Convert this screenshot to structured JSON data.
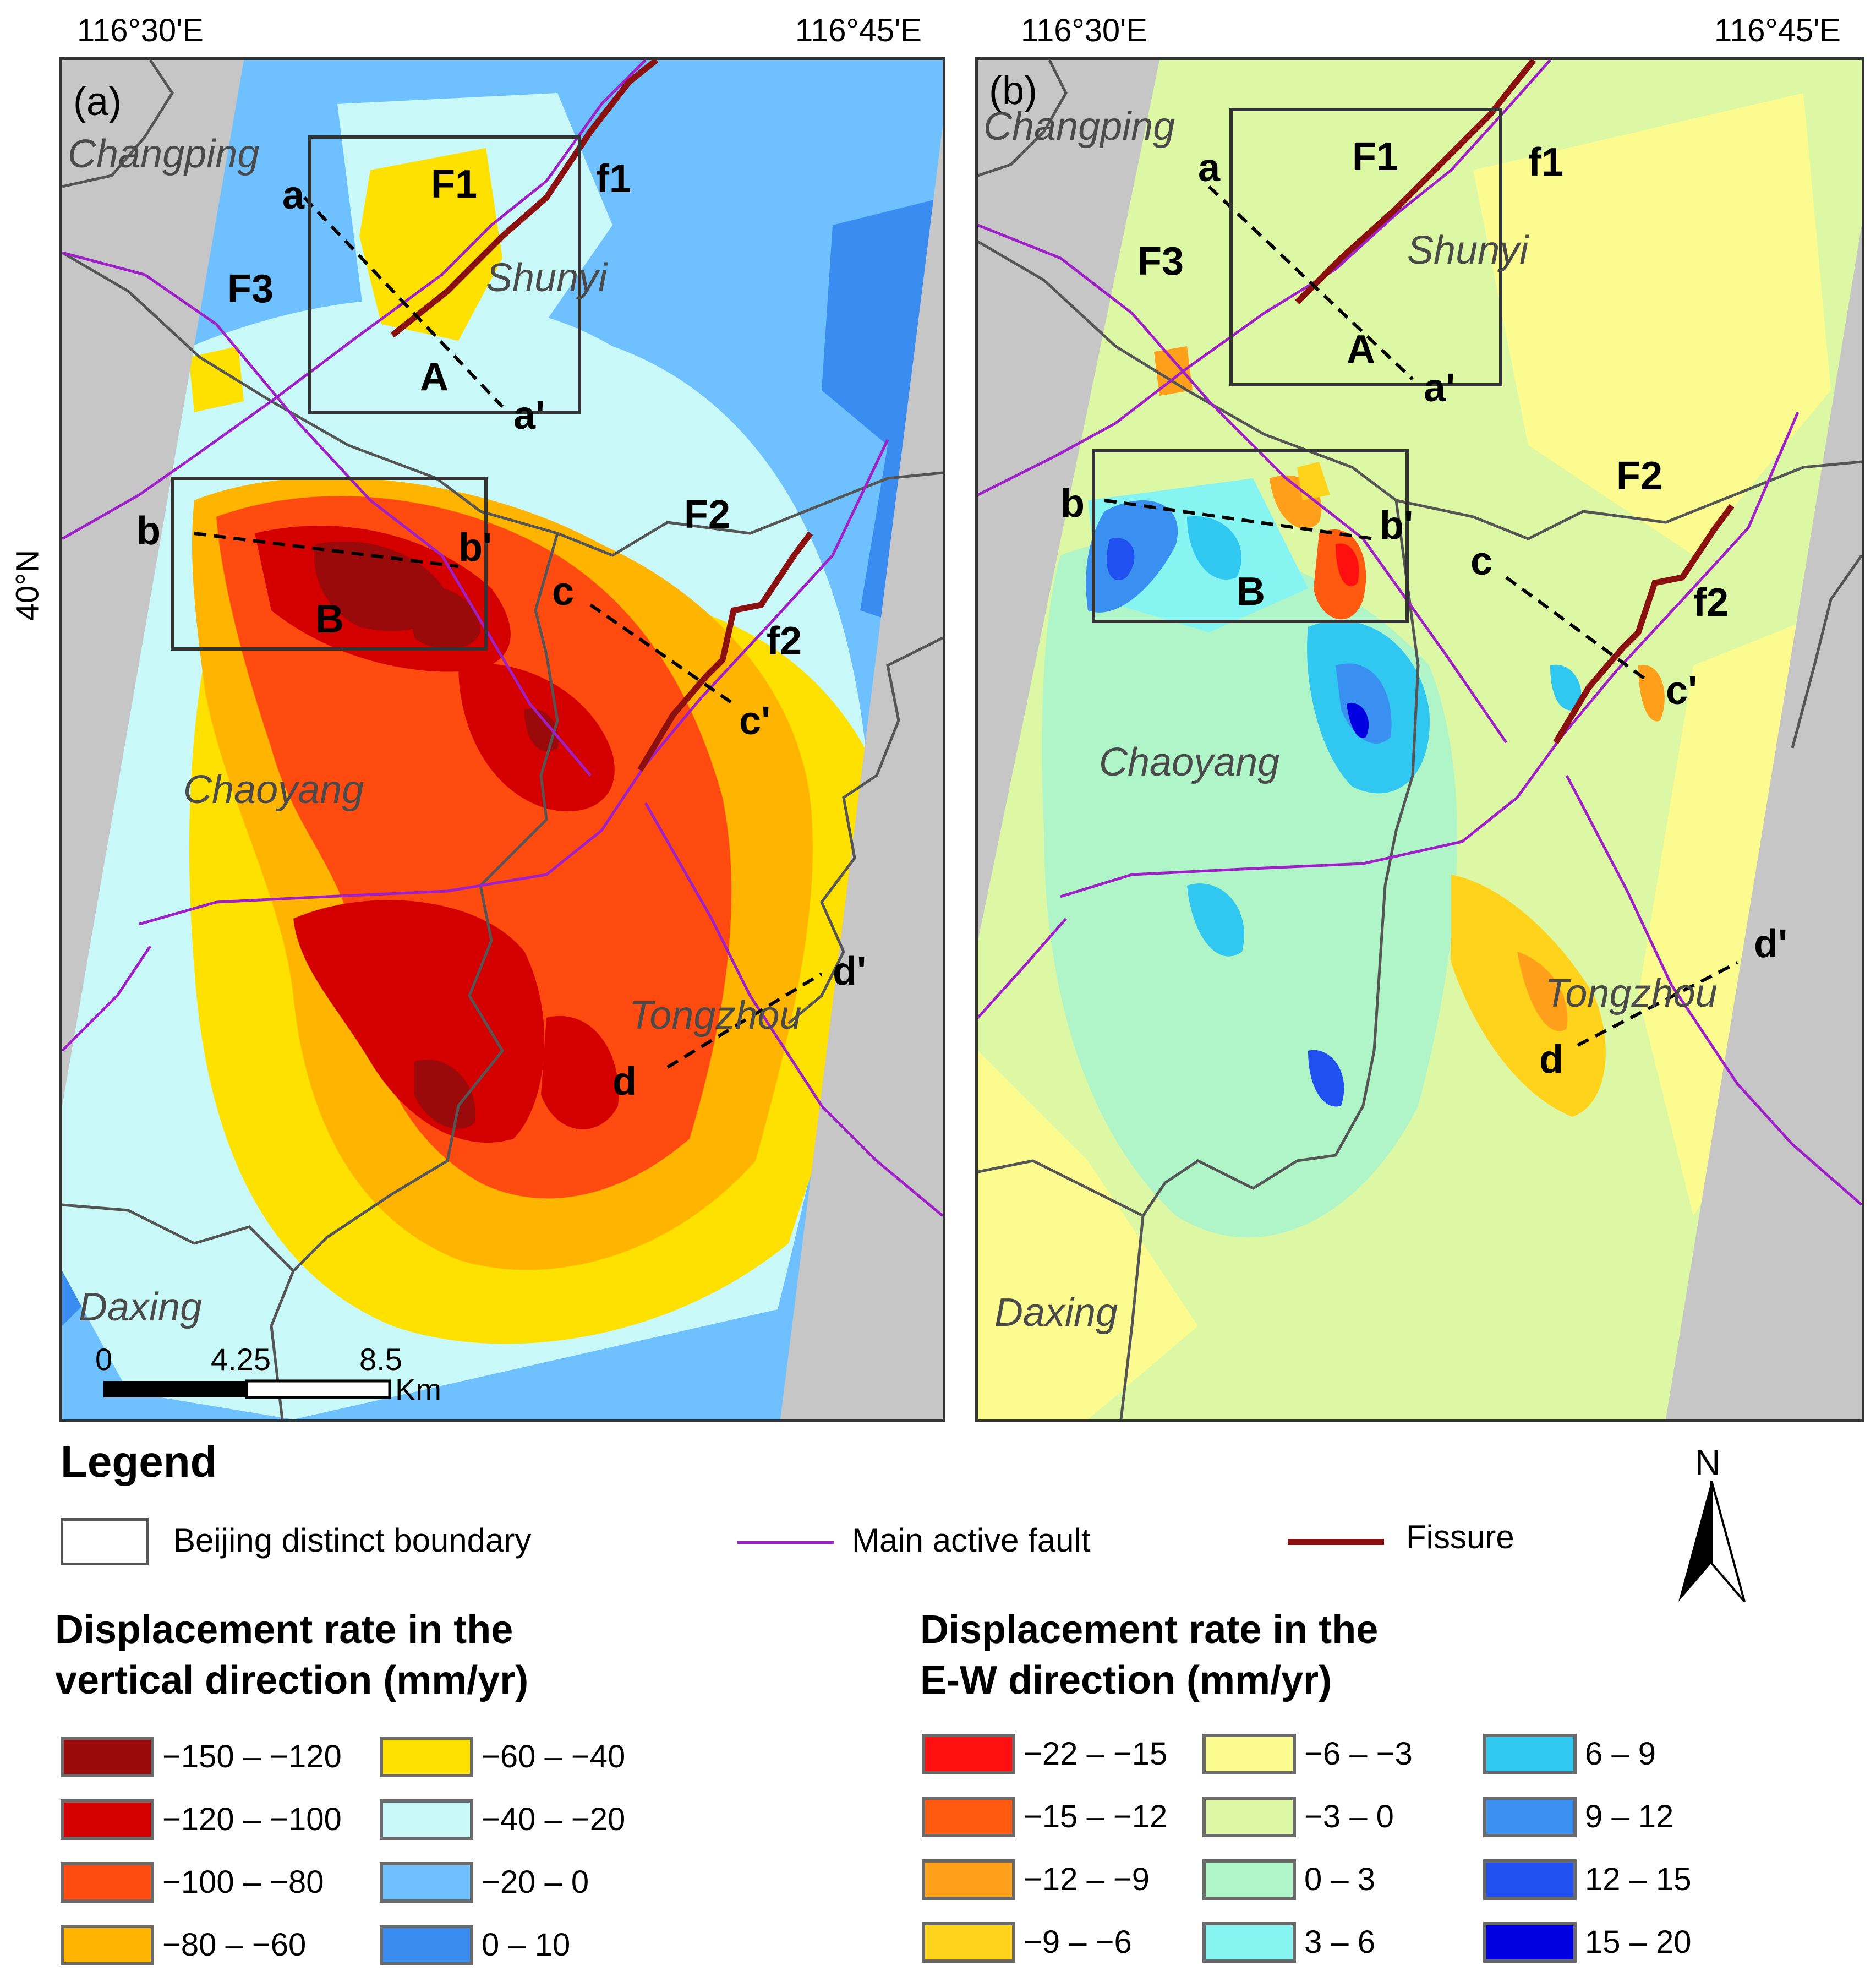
{
  "coords": {
    "top_left_lon": "116°30'E",
    "top_right_lon": "116°45'E",
    "lat_label": "40°N"
  },
  "panel_a": {
    "panel_label": "(a)",
    "districts": [
      "Changping",
      "Shunyi",
      "Chaoyang",
      "Tongzhou",
      "Daxing"
    ],
    "faults": [
      "F1",
      "F2",
      "F3"
    ],
    "fissures": [
      "f1",
      "f2"
    ],
    "boxes": [
      "A",
      "B"
    ],
    "profiles": [
      [
        "a",
        "a'"
      ],
      [
        "b",
        "b'"
      ],
      [
        "c",
        "c'"
      ],
      [
        "d",
        "d'"
      ]
    ],
    "scalebar": {
      "ticks": [
        "0",
        "4.25",
        "8.5"
      ],
      "unit": "Km"
    }
  },
  "panel_b": {
    "panel_label": "(b)",
    "districts": [
      "Changping",
      "Shunyi",
      "Chaoyang",
      "Tongzhou",
      "Daxing"
    ],
    "faults": [
      "F1",
      "F2",
      "F3"
    ],
    "fissures": [
      "f1",
      "f2"
    ],
    "boxes": [
      "A",
      "B"
    ],
    "profiles": [
      [
        "a",
        "a'"
      ],
      [
        "b",
        "b'"
      ],
      [
        "c",
        "c'"
      ],
      [
        "d",
        "d'"
      ]
    ]
  },
  "legend": {
    "title": "Legend",
    "items": {
      "boundary": "Beijing distinct boundary",
      "fault": "Main active fault",
      "fissure": "Fissure"
    },
    "north": "N",
    "colors": {
      "boundary": "#555555",
      "fault": "#a020c8",
      "fissure": "#8b1010"
    }
  },
  "vertical": {
    "title_line1": "Displacement rate in the",
    "title_line2": "vertical direction (mm/yr)",
    "classes": [
      {
        "label": "−150 – −120",
        "color": "#9b0a0a"
      },
      {
        "label": "−120 – −100",
        "color": "#d40000"
      },
      {
        "label": "−100 – −80",
        "color": "#ff4a10"
      },
      {
        "label": "−80 – −60",
        "color": "#ffb400"
      },
      {
        "label": "−60 – −40",
        "color": "#ffe100"
      },
      {
        "label": "−40 – −20",
        "color": "#c8f8f8"
      },
      {
        "label": "−20 – 0",
        "color": "#6ec0ff"
      },
      {
        "label": "0 – 10",
        "color": "#3a8cf0"
      }
    ]
  },
  "ew": {
    "title_line1": "Displacement rate in the",
    "title_line2": "E-W direction (mm/yr)",
    "classes": [
      {
        "label": "−22 – −15",
        "color": "#ff1010"
      },
      {
        "label": "−15 – −12",
        "color": "#ff5a10"
      },
      {
        "label": "−12 – −9",
        "color": "#ff9f1a"
      },
      {
        "label": "−9 – −6",
        "color": "#ffd21c"
      },
      {
        "label": "−6 – −3",
        "color": "#fbfb90"
      },
      {
        "label": "−3 – 0",
        "color": "#dcf8a4"
      },
      {
        "label": "0 – 3",
        "color": "#b0f5c8"
      },
      {
        "label": "3 – 6",
        "color": "#86f4f0"
      },
      {
        "label": "6 – 9",
        "color": "#30c8f0"
      },
      {
        "label": "9 – 12",
        "color": "#3a90f0"
      },
      {
        "label": "12 – 15",
        "color": "#2050f0"
      },
      {
        "label": "15 – 20",
        "color": "#0000e0"
      }
    ]
  }
}
